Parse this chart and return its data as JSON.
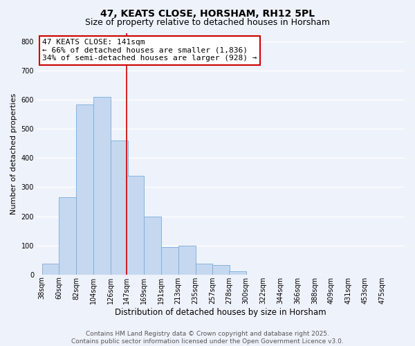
{
  "title": "47, KEATS CLOSE, HORSHAM, RH12 5PL",
  "subtitle": "Size of property relative to detached houses in Horsham",
  "xlabel": "Distribution of detached houses by size in Horsham",
  "ylabel": "Number of detached properties",
  "bin_labels": [
    "38sqm",
    "60sqm",
    "82sqm",
    "104sqm",
    "126sqm",
    "147sqm",
    "169sqm",
    "191sqm",
    "213sqm",
    "235sqm",
    "257sqm",
    "278sqm",
    "300sqm",
    "322sqm",
    "344sqm",
    "366sqm",
    "388sqm",
    "409sqm",
    "431sqm",
    "453sqm",
    "475sqm"
  ],
  "bin_edges": [
    38,
    60,
    82,
    104,
    126,
    147,
    169,
    191,
    213,
    235,
    257,
    278,
    300,
    322,
    344,
    366,
    388,
    409,
    431,
    453,
    475
  ],
  "bar_heights": [
    38,
    265,
    585,
    610,
    460,
    340,
    200,
    95,
    100,
    38,
    32,
    12,
    0,
    0,
    0,
    0,
    0,
    0,
    0,
    0
  ],
  "bar_color": "#c5d8f0",
  "bar_edge_color": "#7aabdb",
  "vline_x": 147,
  "vline_color": "#cc0000",
  "ylim": [
    0,
    830
  ],
  "yticks": [
    0,
    100,
    200,
    300,
    400,
    500,
    600,
    700,
    800
  ],
  "annotation_line1": "47 KEATS CLOSE: 141sqm",
  "annotation_line2": "← 66% of detached houses are smaller (1,836)",
  "annotation_line3": "34% of semi-detached houses are larger (928) →",
  "annotation_box_color": "#ffffff",
  "annotation_box_edge": "#cc0000",
  "background_color": "#eef2fa",
  "grid_color": "#ffffff",
  "footer_line1": "Contains HM Land Registry data © Crown copyright and database right 2025.",
  "footer_line2": "Contains public sector information licensed under the Open Government Licence v3.0.",
  "title_fontsize": 10,
  "subtitle_fontsize": 9,
  "xlabel_fontsize": 8.5,
  "ylabel_fontsize": 8,
  "tick_fontsize": 7,
  "annotation_fontsize": 8,
  "footer_fontsize": 6.5
}
